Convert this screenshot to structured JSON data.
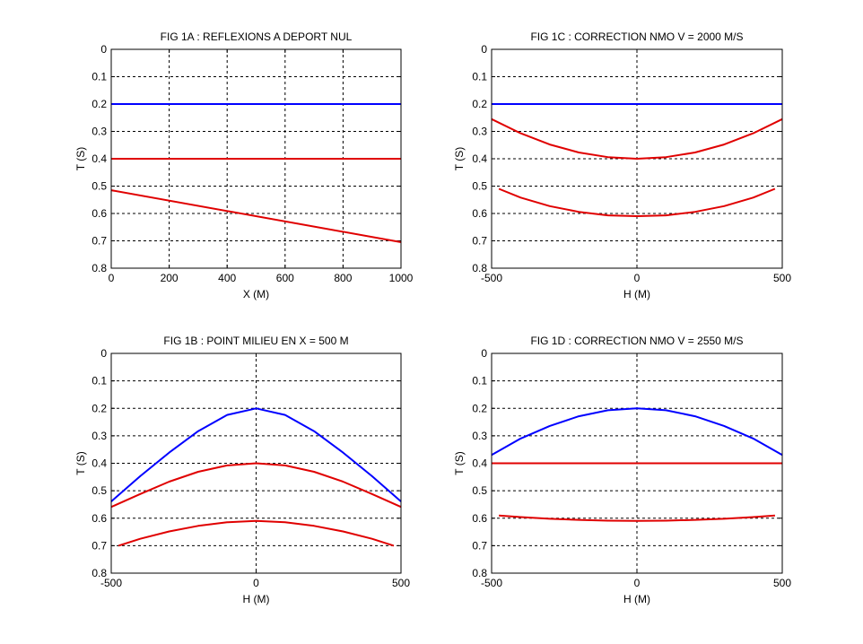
{
  "colors": {
    "blue": "#0000ff",
    "red": "#e00000",
    "grid": "#000000",
    "background": "#ffffff"
  },
  "chart_data": [
    {
      "id": "fig1a",
      "type": "line",
      "title": "FIG 1A : REFLEXIONS A DEPORT NUL",
      "xlabel": "X (M)",
      "ylabel": "T (S)",
      "xlim": [
        0,
        1000
      ],
      "ylim": [
        0,
        0.8
      ],
      "y_reversed": true,
      "grid": true,
      "xticks": [
        "0",
        "200",
        "400",
        "600",
        "800",
        "1000"
      ],
      "yticks": [
        "0",
        "0.1",
        "0.2",
        "0.3",
        "0.4",
        "0.5",
        "0.6",
        "0.7",
        "0.8"
      ],
      "series": [
        {
          "color": "blue",
          "x": [
            0,
            1000
          ],
          "y": [
            0.2,
            0.2
          ]
        },
        {
          "color": "red",
          "x": [
            0,
            1000
          ],
          "y": [
            0.4,
            0.4
          ]
        },
        {
          "color": "red",
          "x": [
            0,
            1000
          ],
          "y": [
            0.515,
            0.705
          ]
        }
      ]
    },
    {
      "id": "fig1c",
      "type": "line",
      "title": "FIG 1C : CORRECTION NMO V =  2000 M/S",
      "xlabel": "H (M)",
      "ylabel": "T (S)",
      "xlim": [
        -500,
        500
      ],
      "ylim": [
        0,
        0.8
      ],
      "y_reversed": true,
      "grid": true,
      "xticks": [
        "-500",
        "0",
        "500"
      ],
      "yticks": [
        "0",
        "0.1",
        "0.2",
        "0.3",
        "0.4",
        "0.5",
        "0.6",
        "0.7",
        "0.8"
      ],
      "series": [
        {
          "color": "blue",
          "x": [
            -500,
            500
          ],
          "y": [
            0.2,
            0.2
          ]
        },
        {
          "color": "red",
          "x": [
            -500,
            -400,
            -300,
            -200,
            -100,
            0,
            100,
            200,
            300,
            400,
            500
          ],
          "y": [
            0.255,
            0.307,
            0.348,
            0.377,
            0.394,
            0.4,
            0.394,
            0.377,
            0.348,
            0.307,
            0.255
          ]
        },
        {
          "color": "red",
          "x": [
            -475,
            -400,
            -300,
            -200,
            -100,
            0,
            100,
            200,
            300,
            400,
            475
          ],
          "y": [
            0.51,
            0.542,
            0.573,
            0.594,
            0.607,
            0.61,
            0.607,
            0.594,
            0.573,
            0.542,
            0.51
          ]
        }
      ]
    },
    {
      "id": "fig1b",
      "type": "line",
      "title": "FIG 1B : POINT MILIEU EN X = 500 M",
      "xlabel": "H (M)",
      "ylabel": "T (S)",
      "xlim": [
        -500,
        500
      ],
      "ylim": [
        0,
        0.8
      ],
      "y_reversed": true,
      "grid": true,
      "xticks": [
        "-500",
        "0",
        "500"
      ],
      "yticks": [
        "0",
        "0.1",
        "0.2",
        "0.3",
        "0.4",
        "0.5",
        "0.6",
        "0.7",
        "0.8"
      ],
      "series": [
        {
          "color": "blue",
          "x": [
            -500,
            -400,
            -300,
            -200,
            -100,
            0,
            100,
            200,
            300,
            400,
            500
          ],
          "y": [
            0.539,
            0.447,
            0.361,
            0.283,
            0.224,
            0.2,
            0.224,
            0.283,
            0.361,
            0.447,
            0.539
          ]
        },
        {
          "color": "red",
          "x": [
            -500,
            -400,
            -300,
            -200,
            -100,
            0,
            100,
            200,
            300,
            400,
            500
          ],
          "y": [
            0.559,
            0.512,
            0.467,
            0.431,
            0.408,
            0.4,
            0.408,
            0.431,
            0.467,
            0.512,
            0.559
          ]
        },
        {
          "color": "red",
          "x": [
            -475,
            -400,
            -300,
            -200,
            -100,
            0,
            100,
            200,
            300,
            400,
            475
          ],
          "y": [
            0.7,
            0.675,
            0.648,
            0.628,
            0.615,
            0.61,
            0.615,
            0.628,
            0.648,
            0.675,
            0.7
          ]
        }
      ]
    },
    {
      "id": "fig1d",
      "type": "line",
      "title": "FIG 1D : CORRECTION NMO V =  2550 M/S",
      "xlabel": "H (M)",
      "ylabel": "T (S)",
      "xlim": [
        -500,
        500
      ],
      "ylim": [
        0,
        0.8
      ],
      "y_reversed": true,
      "grid": true,
      "xticks": [
        "-500",
        "0",
        "500"
      ],
      "yticks": [
        "0",
        "0.1",
        "0.2",
        "0.3",
        "0.4",
        "0.5",
        "0.6",
        "0.7",
        "0.8"
      ],
      "series": [
        {
          "color": "blue",
          "x": [
            -500,
            -400,
            -300,
            -200,
            -100,
            0,
            100,
            200,
            300,
            400,
            500
          ],
          "y": [
            0.37,
            0.31,
            0.264,
            0.229,
            0.207,
            0.2,
            0.207,
            0.229,
            0.264,
            0.31,
            0.37
          ]
        },
        {
          "color": "red",
          "x": [
            -500,
            500
          ],
          "y": [
            0.4,
            0.4
          ]
        },
        {
          "color": "red",
          "x": [
            -475,
            -400,
            -300,
            -200,
            -100,
            0,
            100,
            200,
            300,
            400,
            475
          ],
          "y": [
            0.59,
            0.596,
            0.602,
            0.606,
            0.609,
            0.61,
            0.609,
            0.606,
            0.602,
            0.596,
            0.59
          ]
        }
      ]
    }
  ]
}
